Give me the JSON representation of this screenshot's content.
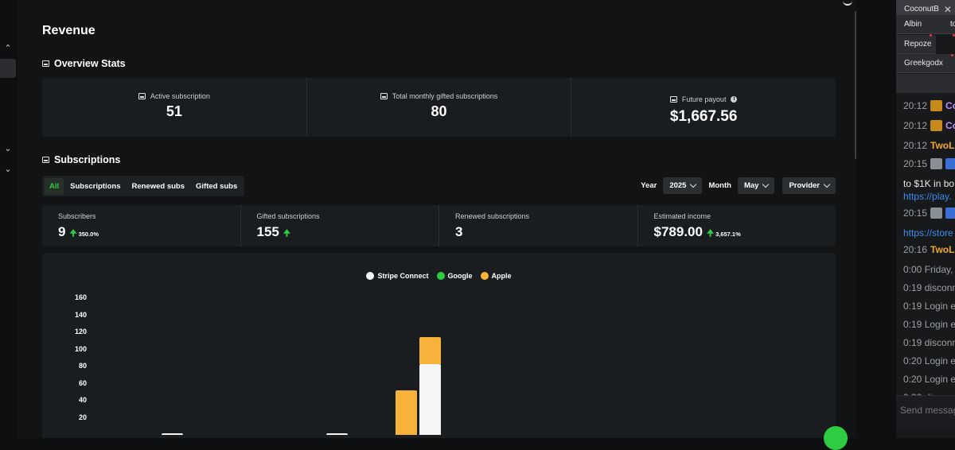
{
  "page": {
    "title": "Revenue"
  },
  "overview": {
    "title": "Overview Stats",
    "cards": [
      {
        "label": "Active subscription",
        "value": "51"
      },
      {
        "label": "Total monthly gifted subscriptions",
        "value": "80"
      },
      {
        "label": "Future payout",
        "value": "$1,667.56"
      }
    ]
  },
  "subscriptions": {
    "title": "Subscriptions",
    "tabs": [
      "All",
      "Subscriptions",
      "Renewed subs",
      "Gifted subs"
    ],
    "active_tab": "All",
    "filters": {
      "year_label": "Year",
      "year_value": "2025",
      "month_label": "Month",
      "month_value": "May",
      "provider_label": "Provider"
    },
    "stats": [
      {
        "label": "Subscribers",
        "value": "9",
        "change": "350.0%"
      },
      {
        "label": "Gifted subscriptions",
        "value": "155",
        "change": ""
      },
      {
        "label": "Renewed subscriptions",
        "value": "3",
        "change": null
      },
      {
        "label": "Estimated income",
        "value": "$789.00",
        "change": "3,657.1%"
      }
    ]
  },
  "chart_data": {
    "type": "bar",
    "stacked": true,
    "legend": [
      {
        "name": "Stripe Connect",
        "color": "#f5f5f5"
      },
      {
        "name": "Google",
        "color": "#2ecc40"
      },
      {
        "name": "Apple",
        "color": "#f7b23b"
      }
    ],
    "yticks": [
      20,
      40,
      60,
      80,
      100,
      120,
      140,
      160
    ],
    "ylim": [
      0,
      170
    ],
    "bars": [
      {
        "slot": 0,
        "stripe": 1,
        "google": 0,
        "apple": 0
      },
      {
        "slot": 1,
        "stripe": 1,
        "google": 0,
        "apple": 0
      },
      {
        "slot": 2,
        "stripe": 0,
        "google": 0,
        "apple": 52
      },
      {
        "slot": 3,
        "stripe": 83,
        "google": 0,
        "apple": 31
      }
    ]
  },
  "chat": {
    "tabs": [
      "CoconutB",
      "Albin",
      "to",
      "Repoze",
      "Greekgodx"
    ],
    "messages": [
      {
        "time": "20:12",
        "name": "Co",
        "color": "purple",
        "badge": "#c58a1a"
      },
      {
        "time": "20:12",
        "name": "Co",
        "color": "purple",
        "badge": "#c58a1a"
      },
      {
        "time": "20:12",
        "name": "TwoLe",
        "color": "orange"
      },
      {
        "time": "20:15",
        "name": "",
        "badges": [
          "#8a8f96",
          "#3a6fd8"
        ]
      },
      {
        "text": "to $1K in bo"
      },
      {
        "link": "https://play."
      },
      {
        "time": "20:15",
        "name": "",
        "badges": [
          "#8a8f96",
          "#3a6fd8"
        ]
      },
      {
        "link": "https://store"
      },
      {
        "time": "20:16",
        "name": "TwoLe",
        "color": "orange"
      },
      {
        "text": "0:00 Friday, "
      },
      {
        "text": "0:19 disconn"
      },
      {
        "text": "0:19 Login e"
      },
      {
        "text": "0:19 Login e"
      },
      {
        "text": "0:19 disconn"
      },
      {
        "text": "0:20 Login e"
      },
      {
        "text": "0:20 Login e"
      },
      {
        "text": "0:20 disconn"
      }
    ],
    "send_placeholder": "Send message"
  }
}
